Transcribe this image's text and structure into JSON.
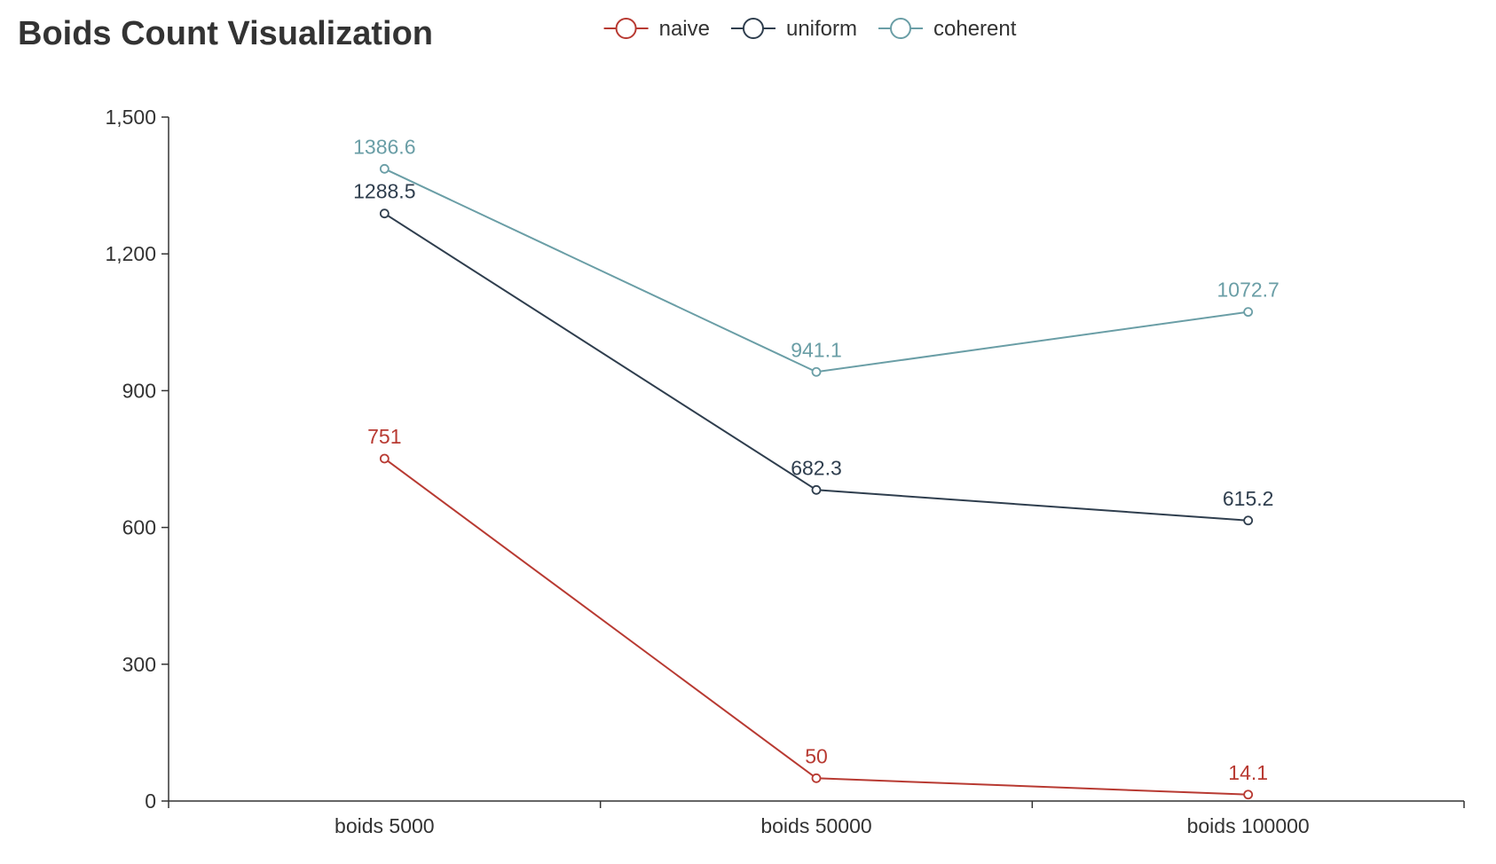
{
  "chart_data": {
    "type": "line",
    "title": "Boids Count Visualization",
    "xlabel": "",
    "ylabel": "",
    "categories": [
      "boids 5000",
      "boids 50000",
      "boids 100000"
    ],
    "ylim": [
      0,
      1500
    ],
    "yticks": [
      0,
      300,
      600,
      900,
      1200,
      1500
    ],
    "ytick_labels": [
      "0",
      "300",
      "600",
      "900",
      "1,200",
      "1,500"
    ],
    "grid": false,
    "legend_position": "top-center",
    "series": [
      {
        "name": "naive",
        "color": "#b83a32",
        "values": [
          751,
          50,
          14.1
        ],
        "labels": [
          "751",
          "50",
          "14.1"
        ]
      },
      {
        "name": "uniform",
        "color": "#2f3e4e",
        "values": [
          1288.5,
          682.3,
          615.2
        ],
        "labels": [
          "1288.5",
          "682.3",
          "615.2"
        ]
      },
      {
        "name": "coherent",
        "color": "#6a9ea6",
        "values": [
          1386.6,
          941.1,
          1072.7
        ],
        "labels": [
          "1386.6",
          "941.1",
          "1072.7"
        ]
      }
    ]
  }
}
